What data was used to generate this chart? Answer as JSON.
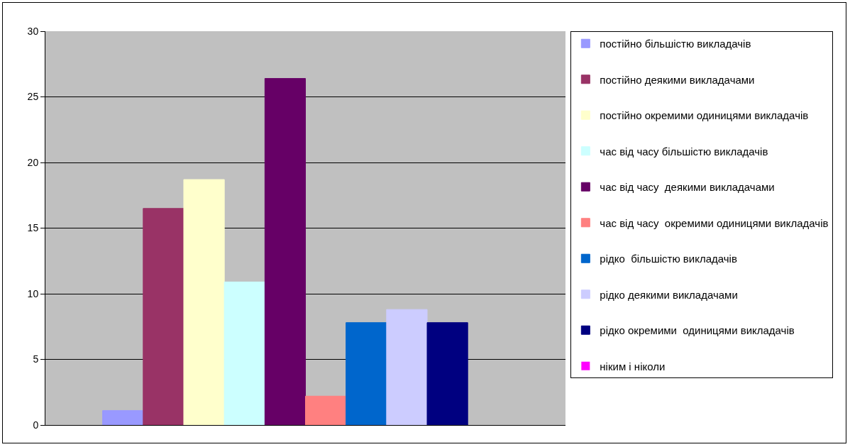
{
  "chart_data": {
    "type": "bar",
    "categories": [
      null
    ],
    "ylim": [
      0,
      30
    ],
    "yticks": [
      0,
      5,
      10,
      15,
      20,
      25,
      30
    ],
    "grid": "y",
    "legend": "right",
    "tick_labels": "y",
    "series": [
      {
        "name": "постійно більшістю викладачів",
        "color": "#9999ff",
        "values": [
          1.1
        ]
      },
      {
        "name": "постійно деякими викладачами",
        "color": "#993366",
        "values": [
          16.5
        ]
      },
      {
        "name": "постійно окремими одиницями викладачів",
        "color": "#ffffcc",
        "values": [
          18.7
        ]
      },
      {
        "name": "час від часу більшістю викладачів",
        "color": "#ccffff",
        "values": [
          10.9
        ]
      },
      {
        "name": "час від часу  деякими викладачами",
        "color": "#660066",
        "values": [
          26.4
        ]
      },
      {
        "name": "час від часу  окремими одиницями викладачів",
        "color": "#ff8080",
        "values": [
          2.2
        ]
      },
      {
        "name": "рідко  більшістю викладачів",
        "color": "#0066cc",
        "values": [
          7.8
        ]
      },
      {
        "name": "рідко деякими викладачами",
        "color": "#ccccff",
        "values": [
          8.8
        ]
      },
      {
        "name": "рідко окремими  одиницями викладачів",
        "color": "#000080",
        "values": [
          7.8
        ]
      },
      {
        "name": "ніким і ніколи",
        "color": "#ff00ff",
        "values": [
          0
        ]
      }
    ]
  }
}
